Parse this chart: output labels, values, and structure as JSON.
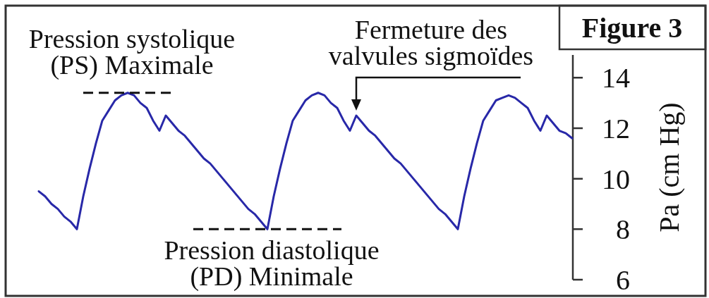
{
  "chart_data": {
    "type": "line",
    "title": "Figure 3",
    "ylabel": "Pa (cm Hg)",
    "categories": [
      null,
      null,
      null,
      null,
      null,
      null,
      null,
      null,
      null,
      null,
      null,
      null,
      null,
      null,
      null,
      null,
      null,
      null,
      null,
      null,
      null,
      null,
      null,
      null,
      null,
      null,
      null,
      null,
      null,
      null,
      null,
      null,
      null,
      null,
      null,
      null,
      null,
      null,
      null,
      null,
      null,
      null,
      null,
      null,
      null,
      null,
      null,
      null,
      null,
      null,
      null,
      null,
      null,
      null,
      null,
      null,
      null,
      null,
      null,
      null,
      null,
      null,
      null,
      null,
      null,
      null,
      null,
      null,
      null,
      null,
      null,
      null,
      null,
      null,
      null,
      null,
      null,
      null,
      null,
      null,
      null,
      null,
      null,
      null,
      null
    ],
    "color": "#2828a8",
    "values": [
      9.5,
      9.3,
      9.0,
      8.8,
      8.5,
      8.3,
      8.0,
      9.3,
      10.4,
      11.4,
      12.3,
      12.7,
      13.1,
      13.3,
      13.4,
      13.3,
      13.0,
      12.8,
      12.3,
      11.9,
      12.5,
      12.2,
      11.9,
      11.7,
      11.4,
      11.1,
      10.8,
      10.6,
      10.3,
      10.0,
      9.7,
      9.4,
      9.1,
      8.8,
      8.6,
      8.3,
      8.0,
      9.3,
      10.4,
      11.4,
      12.3,
      12.7,
      13.1,
      13.3,
      13.4,
      13.3,
      13.0,
      12.8,
      12.3,
      11.9,
      12.5,
      12.2,
      11.9,
      11.7,
      11.4,
      11.1,
      10.8,
      10.6,
      10.3,
      10.0,
      9.7,
      9.4,
      9.1,
      8.8,
      8.6,
      8.3,
      8.0,
      9.3,
      10.4,
      11.4,
      12.3,
      12.7,
      13.1,
      13.2,
      13.3,
      13.2,
      13.0,
      12.8,
      12.3,
      11.9,
      12.5,
      12.2,
      11.9,
      11.8,
      11.6
    ],
    "ylim": [
      6,
      14.9
    ],
    "yticks": [
      6,
      8,
      10,
      12,
      14
    ],
    "tick_labels": "y",
    "ref_lines": [
      {
        "axis": "y",
        "value": 13.4,
        "label": "Pression systolique (PS) Maximale",
        "line_style": "dashed",
        "color": "#111111"
      },
      {
        "axis": "y",
        "value": 8,
        "label": "Pression diastolique (PD) Minimale",
        "line_style": "dashed",
        "color": "#111111"
      }
    ],
    "annotations": [
      "Fermeture des valvules sigmoïdes"
    ]
  }
}
